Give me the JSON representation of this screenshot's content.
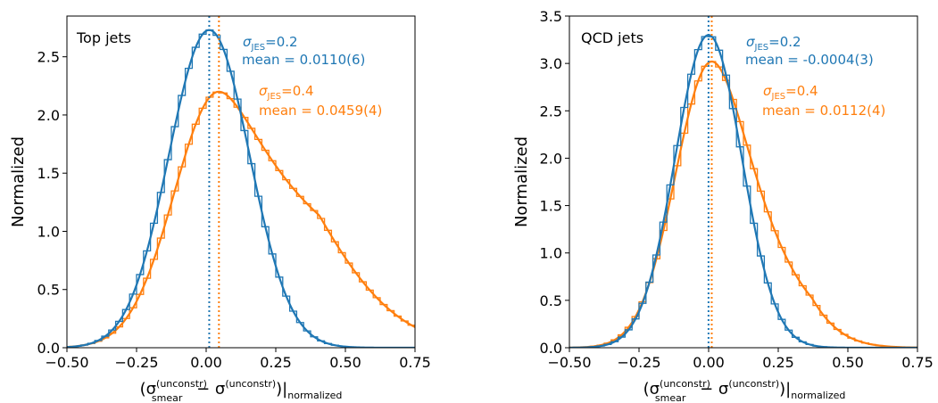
{
  "colors": {
    "blue": "#1f77b4",
    "orange": "#ff7f0e"
  },
  "chart_data": [
    {
      "type": "histogram-line",
      "title": "Top jets",
      "ylabel": "Normalized",
      "xlabel_prefix": "(σ",
      "xlabel_smear_sup": "(unconstr)",
      "xlabel_smear_sub": "smear",
      "xlabel_mid": " − σ",
      "xlabel_sup2": "(unconstr)",
      "xlabel_suffix": ")|",
      "xlabel_sub2": "normalized",
      "xlim": [
        -0.5,
        0.75
      ],
      "ylim": [
        0,
        2.85
      ],
      "xticks": [
        "−0.50",
        "−0.25",
        "0.00",
        "0.25",
        "0.50",
        "0.75"
      ],
      "xtick_values": [
        -0.5,
        -0.25,
        0,
        0.25,
        0.5,
        0.75
      ],
      "yticks": [
        "0.0",
        "0.5",
        "1.0",
        "1.5",
        "2.0",
        "2.5"
      ],
      "ytick_values": [
        0,
        0.5,
        1.0,
        1.5,
        2.0,
        2.5
      ],
      "series": [
        {
          "color": "blue",
          "sigma_label": "σ",
          "sigma_sub": "JES",
          "sigma_value": "=0.2",
          "mean_label": "mean = 0.0110(6)",
          "mean": 0.011,
          "peak": 2.73,
          "std": 0.145,
          "tail": 0
        },
        {
          "color": "orange",
          "sigma_label": "σ",
          "sigma_sub": "JES",
          "sigma_value": "=0.4",
          "mean_label": "mean = 0.0459(4)",
          "mean": 0.0459,
          "peak": 2.2,
          "std": 0.16,
          "tail": 0.8
        }
      ]
    },
    {
      "type": "histogram-line",
      "title": "QCD jets",
      "ylabel": "Normalized",
      "xlabel_prefix": "(σ",
      "xlabel_smear_sup": "(unconstr)",
      "xlabel_smear_sub": "smear",
      "xlabel_mid": " − σ",
      "xlabel_sup2": "(unconstr)",
      "xlabel_suffix": ")|",
      "xlabel_sub2": "normalized",
      "xlim": [
        -0.5,
        0.75
      ],
      "ylim": [
        0,
        3.5
      ],
      "xticks": [
        "−0.50",
        "−0.25",
        "0.00",
        "0.25",
        "0.50",
        "0.75"
      ],
      "xtick_values": [
        -0.5,
        -0.25,
        0,
        0.25,
        0.5,
        0.75
      ],
      "yticks": [
        "0.0",
        "0.5",
        "1.0",
        "1.5",
        "2.0",
        "2.5",
        "3.0",
        "3.5"
      ],
      "ytick_values": [
        0,
        0.5,
        1.0,
        1.5,
        2.0,
        2.5,
        3.0,
        3.5
      ],
      "series": [
        {
          "color": "blue",
          "sigma_label": "σ",
          "sigma_sub": "JES",
          "sigma_value": "=0.2",
          "mean_label": "mean = -0.0004(3)",
          "mean": -0.0004,
          "peak": 3.3,
          "std": 0.12,
          "tail": 0
        },
        {
          "color": "orange",
          "sigma_label": "σ",
          "sigma_sub": "JES",
          "sigma_value": "=0.4",
          "mean_label": "mean = 0.0112(4)",
          "mean": 0.0112,
          "peak": 3.02,
          "std": 0.13,
          "tail": 0.4
        }
      ]
    }
  ]
}
